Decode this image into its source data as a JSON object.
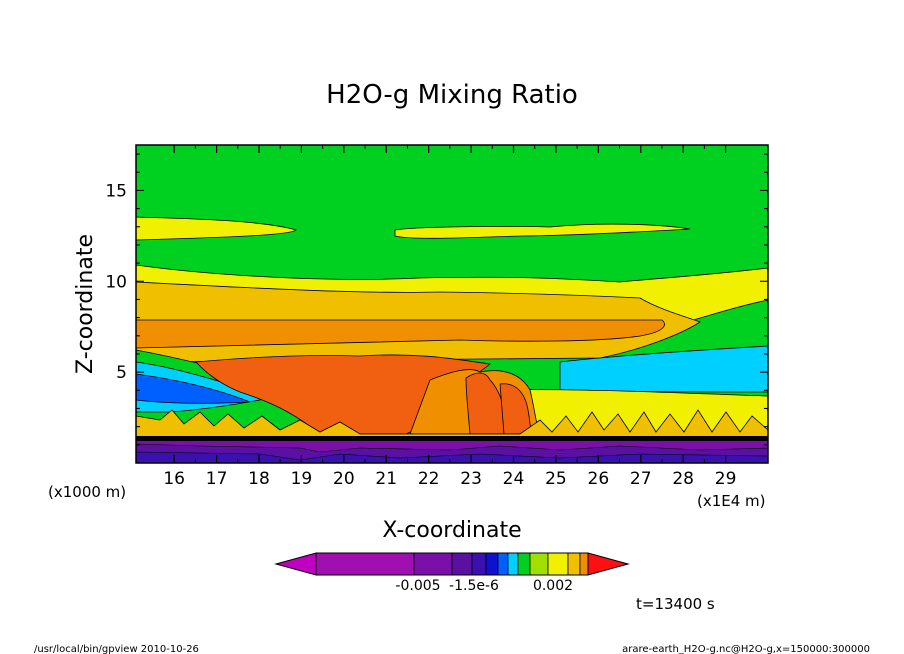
{
  "chart_data": {
    "type": "contour",
    "title": "H2O-g Mixing Ratio",
    "xlabel": "X-coordinate",
    "ylabel": "Z-coordinate",
    "xlim": [
      15.1,
      30
    ],
    "ylim": [
      0,
      17.5
    ],
    "x_ticks": [
      "16",
      "17",
      "18",
      "19",
      "20",
      "21",
      "22",
      "23",
      "24",
      "25",
      "26",
      "27",
      "28",
      "29"
    ],
    "y_ticks": [
      {
        "value": 5,
        "label": "5"
      },
      {
        "value": 10,
        "label": "10"
      },
      {
        "value": 15,
        "label": "15"
      }
    ],
    "x_unit_left": "(x1000 m)",
    "x_unit_right": "(x1E4 m)",
    "colorbar": {
      "colors": [
        "#c000c0",
        "#a010b0",
        "#7a10a8",
        "#5a10a0",
        "#3a10b0",
        "#1010d0",
        "#0060ff",
        "#00d0ff",
        "#00d020",
        "#a0e000",
        "#f0f000",
        "#f0c000",
        "#f09000",
        "#f06010",
        "#ff1010"
      ],
      "tick_labels": [
        "-0.005",
        "-1.5e-6",
        "0.002"
      ]
    },
    "time_label": "t=13400 s",
    "footer_left": "/usr/local/bin/gpview  2010-10-26",
    "footer_right": "arare-earth_H2O-g.nc@H2O-g,x=150000:300000"
  }
}
